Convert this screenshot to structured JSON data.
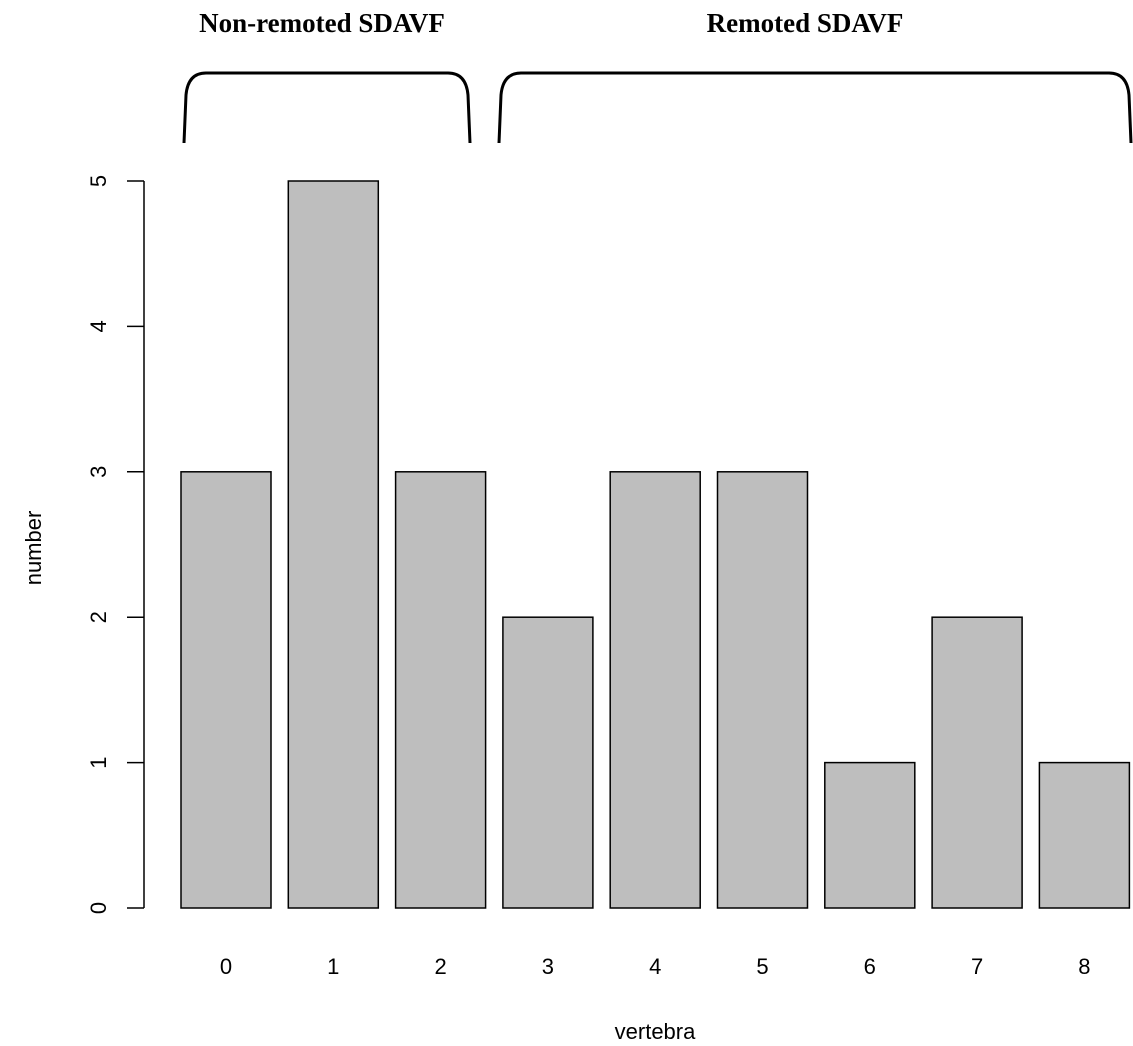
{
  "chart_data": {
    "type": "bar",
    "categories": [
      "0",
      "1",
      "2",
      "3",
      "4",
      "5",
      "6",
      "7",
      "8"
    ],
    "values": [
      3,
      5,
      3,
      2,
      3,
      3,
      1,
      2,
      1
    ],
    "xlabel": "vertebra",
    "ylabel": "number",
    "ylim": [
      0,
      5
    ],
    "yticks": [
      0,
      1,
      2,
      3,
      4,
      5
    ],
    "grid": false,
    "bar_color": "#bebebe",
    "groups": [
      {
        "label": "Non-remoted SDAVF",
        "categories": [
          "0",
          "1",
          "2"
        ]
      },
      {
        "label": "Remoted SDAVF",
        "categories": [
          "3",
          "4",
          "5",
          "6",
          "7",
          "8"
        ]
      }
    ]
  }
}
